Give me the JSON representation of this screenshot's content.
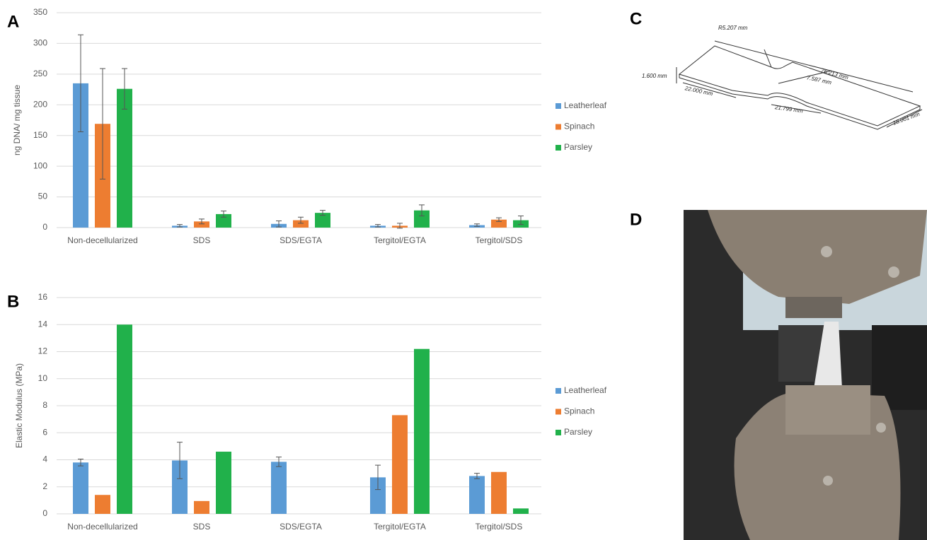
{
  "panels": {
    "a": "A",
    "b": "B",
    "c": "C",
    "d": "D"
  },
  "drawing": {
    "labels": [
      "R5.207 mm",
      "76.213 mm",
      "7.587 mm",
      "1.600 mm",
      "22.000 mm",
      "21.799 mm",
      "18.001 mm"
    ]
  },
  "chart_data": [
    {
      "type": "bar",
      "y_label": "ng DNA/ mg tissue",
      "categories": [
        "Non-decellularized",
        "SDS",
        "SDS/EGTA",
        "Tergitol/EGTA",
        "Tergitol/SDS"
      ],
      "series": [
        {
          "name": "Leatherleaf",
          "color": "#5b9bd5",
          "values": [
            235,
            3,
            6,
            3,
            4
          ],
          "errors": [
            79,
            2,
            5,
            2,
            2
          ]
        },
        {
          "name": "Spinach",
          "color": "#ed7d31",
          "values": [
            169,
            10,
            12,
            3,
            13
          ],
          "errors": [
            90,
            4,
            5,
            4,
            3
          ]
        },
        {
          "name": "Parsley",
          "color": "#21b14b",
          "values": [
            226,
            22,
            24,
            28,
            12
          ],
          "errors": [
            33,
            5,
            4,
            9,
            7
          ]
        }
      ],
      "ylim": [
        0,
        350
      ],
      "yticks": [
        0,
        50,
        100,
        150,
        200,
        250,
        300,
        350
      ],
      "grid": true,
      "legend": "right"
    },
    {
      "type": "bar",
      "y_label": "Elastic Modulus (MPa)",
      "categories": [
        "Non-decellularized",
        "SDS",
        "SDS/EGTA",
        "Tergitol/EGTA",
        "Tergitol/SDS"
      ],
      "series": [
        {
          "name": "Leatherleaf",
          "color": "#5b9bd5",
          "values": [
            3.8,
            3.95,
            3.85,
            2.7,
            2.8
          ],
          "errors": [
            0.25,
            1.35,
            0.35,
            0.9,
            0.2
          ]
        },
        {
          "name": "Spinach",
          "color": "#ed7d31",
          "values": [
            1.4,
            0.95,
            null,
            7.3,
            3.1
          ],
          "errors": [
            null,
            null,
            null,
            null,
            null
          ]
        },
        {
          "name": "Parsley",
          "color": "#21b14b",
          "values": [
            14,
            4.6,
            null,
            12.2,
            0.4
          ],
          "errors": [
            null,
            null,
            null,
            null,
            null
          ]
        }
      ],
      "ylim": [
        0,
        16
      ],
      "yticks": [
        0,
        2,
        4,
        6,
        8,
        10,
        12,
        14,
        16
      ],
      "grid": true,
      "legend": "right"
    }
  ]
}
